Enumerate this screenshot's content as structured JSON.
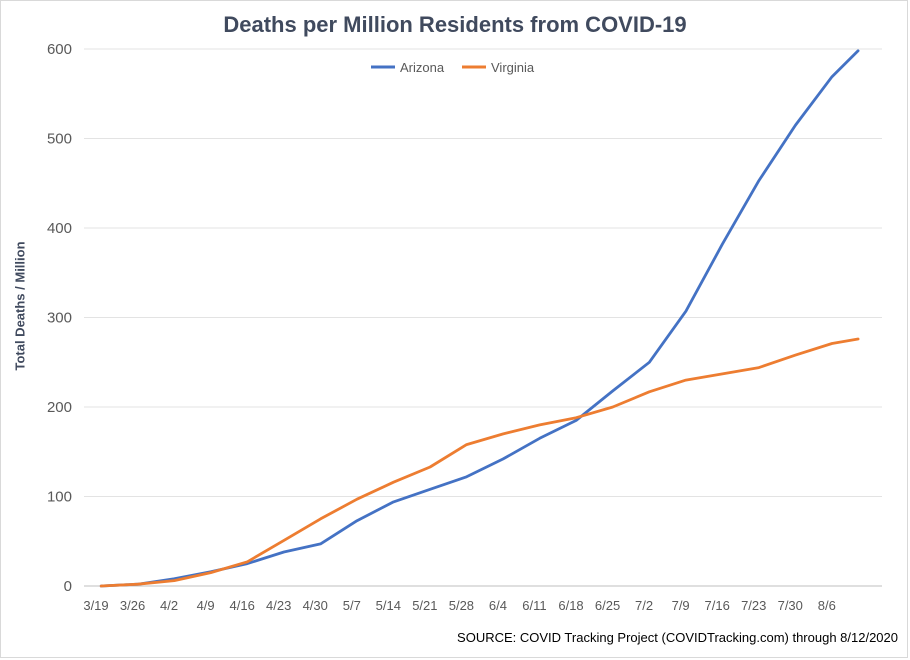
{
  "chart_data": {
    "type": "line",
    "title": "Deaths per Million Residents from COVID-19",
    "xlabel": "",
    "ylabel": "Total Deaths / Million",
    "source": "SOURCE: COVID Tracking Project (COVIDTracking.com) through 8/12/2020",
    "ylim": [
      0,
      600
    ],
    "yticks": [
      0,
      100,
      200,
      300,
      400,
      500,
      600
    ],
    "grid": "horizontal",
    "legend_position": "top",
    "x_ticks": [
      "3/19",
      "3/26",
      "4/2",
      "4/9",
      "4/16",
      "4/23",
      "4/30",
      "5/7",
      "5/14",
      "5/21",
      "5/28",
      "6/4",
      "6/11",
      "6/18",
      "6/25",
      "7/2",
      "7/9",
      "7/16",
      "7/23",
      "7/30",
      "8/6"
    ],
    "x": [
      "3/20",
      "3/27",
      "4/3",
      "4/10",
      "4/17",
      "4/24",
      "5/1",
      "5/8",
      "5/15",
      "5/22",
      "5/29",
      "6/5",
      "6/12",
      "6/19",
      "6/26",
      "7/3",
      "7/10",
      "7/17",
      "7/24",
      "7/31",
      "8/7",
      "8/12"
    ],
    "series": [
      {
        "name": "Arizona",
        "color": "#4472c4",
        "values": [
          0,
          2,
          8,
          16,
          25,
          38,
          47,
          73,
          94,
          108,
          122,
          142,
          165,
          185,
          218,
          250,
          307,
          382,
          453,
          515,
          569,
          598
        ]
      },
      {
        "name": "Virginia",
        "color": "#ed7d31",
        "values": [
          0,
          2,
          6,
          15,
          27,
          51,
          75,
          97,
          116,
          133,
          158,
          170,
          180,
          188,
          200,
          217,
          230,
          237,
          244,
          258,
          271,
          276
        ]
      }
    ]
  }
}
